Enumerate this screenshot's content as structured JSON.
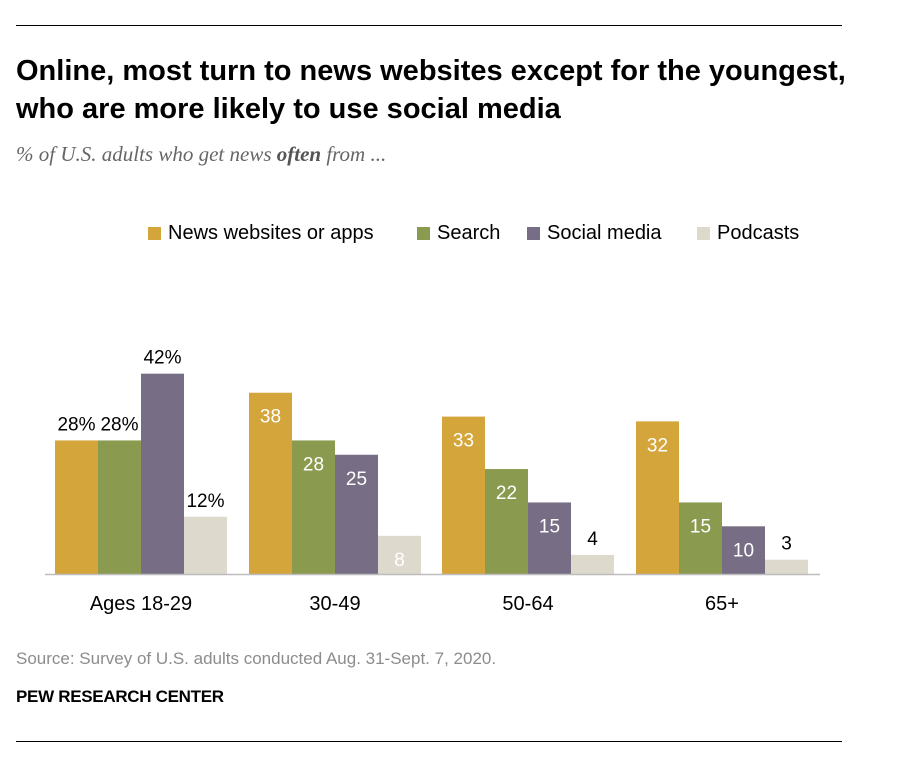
{
  "header": {
    "title": "Online, most turn to news websites except for the youngest, who are more likely to use social media",
    "subtitle_prefix": "% of U.S. adults who get news ",
    "subtitle_emphasis": "often",
    "subtitle_suffix": " from ..."
  },
  "chart_data": {
    "type": "bar",
    "categories": [
      "Ages 18-29",
      "30-49",
      "50-64",
      "65+"
    ],
    "series": [
      {
        "name": "News websites or apps",
        "color": "#d4a53a",
        "values": [
          28,
          38,
          33,
          32
        ],
        "labels": [
          "28%",
          "38",
          "33",
          "32"
        ]
      },
      {
        "name": "Search",
        "color": "#8a9a4e",
        "values": [
          28,
          28,
          22,
          15
        ],
        "labels": [
          "28%",
          "28",
          "22",
          "15"
        ]
      },
      {
        "name": "Social media",
        "color": "#776e86",
        "values": [
          42,
          25,
          15,
          10
        ],
        "labels": [
          "42%",
          "25",
          "15",
          "10"
        ]
      },
      {
        "name": "Podcasts",
        "color": "#ddd9cc",
        "values": [
          12,
          8,
          4,
          3
        ],
        "labels": [
          "12%",
          "8",
          "4",
          "3"
        ]
      }
    ],
    "legend_position": "top",
    "grid": false
  },
  "footer": {
    "source": "Source: Survey of U.S. adults conducted Aug. 31-Sept. 7, 2020.",
    "brand": "PEW RESEARCH CENTER"
  }
}
